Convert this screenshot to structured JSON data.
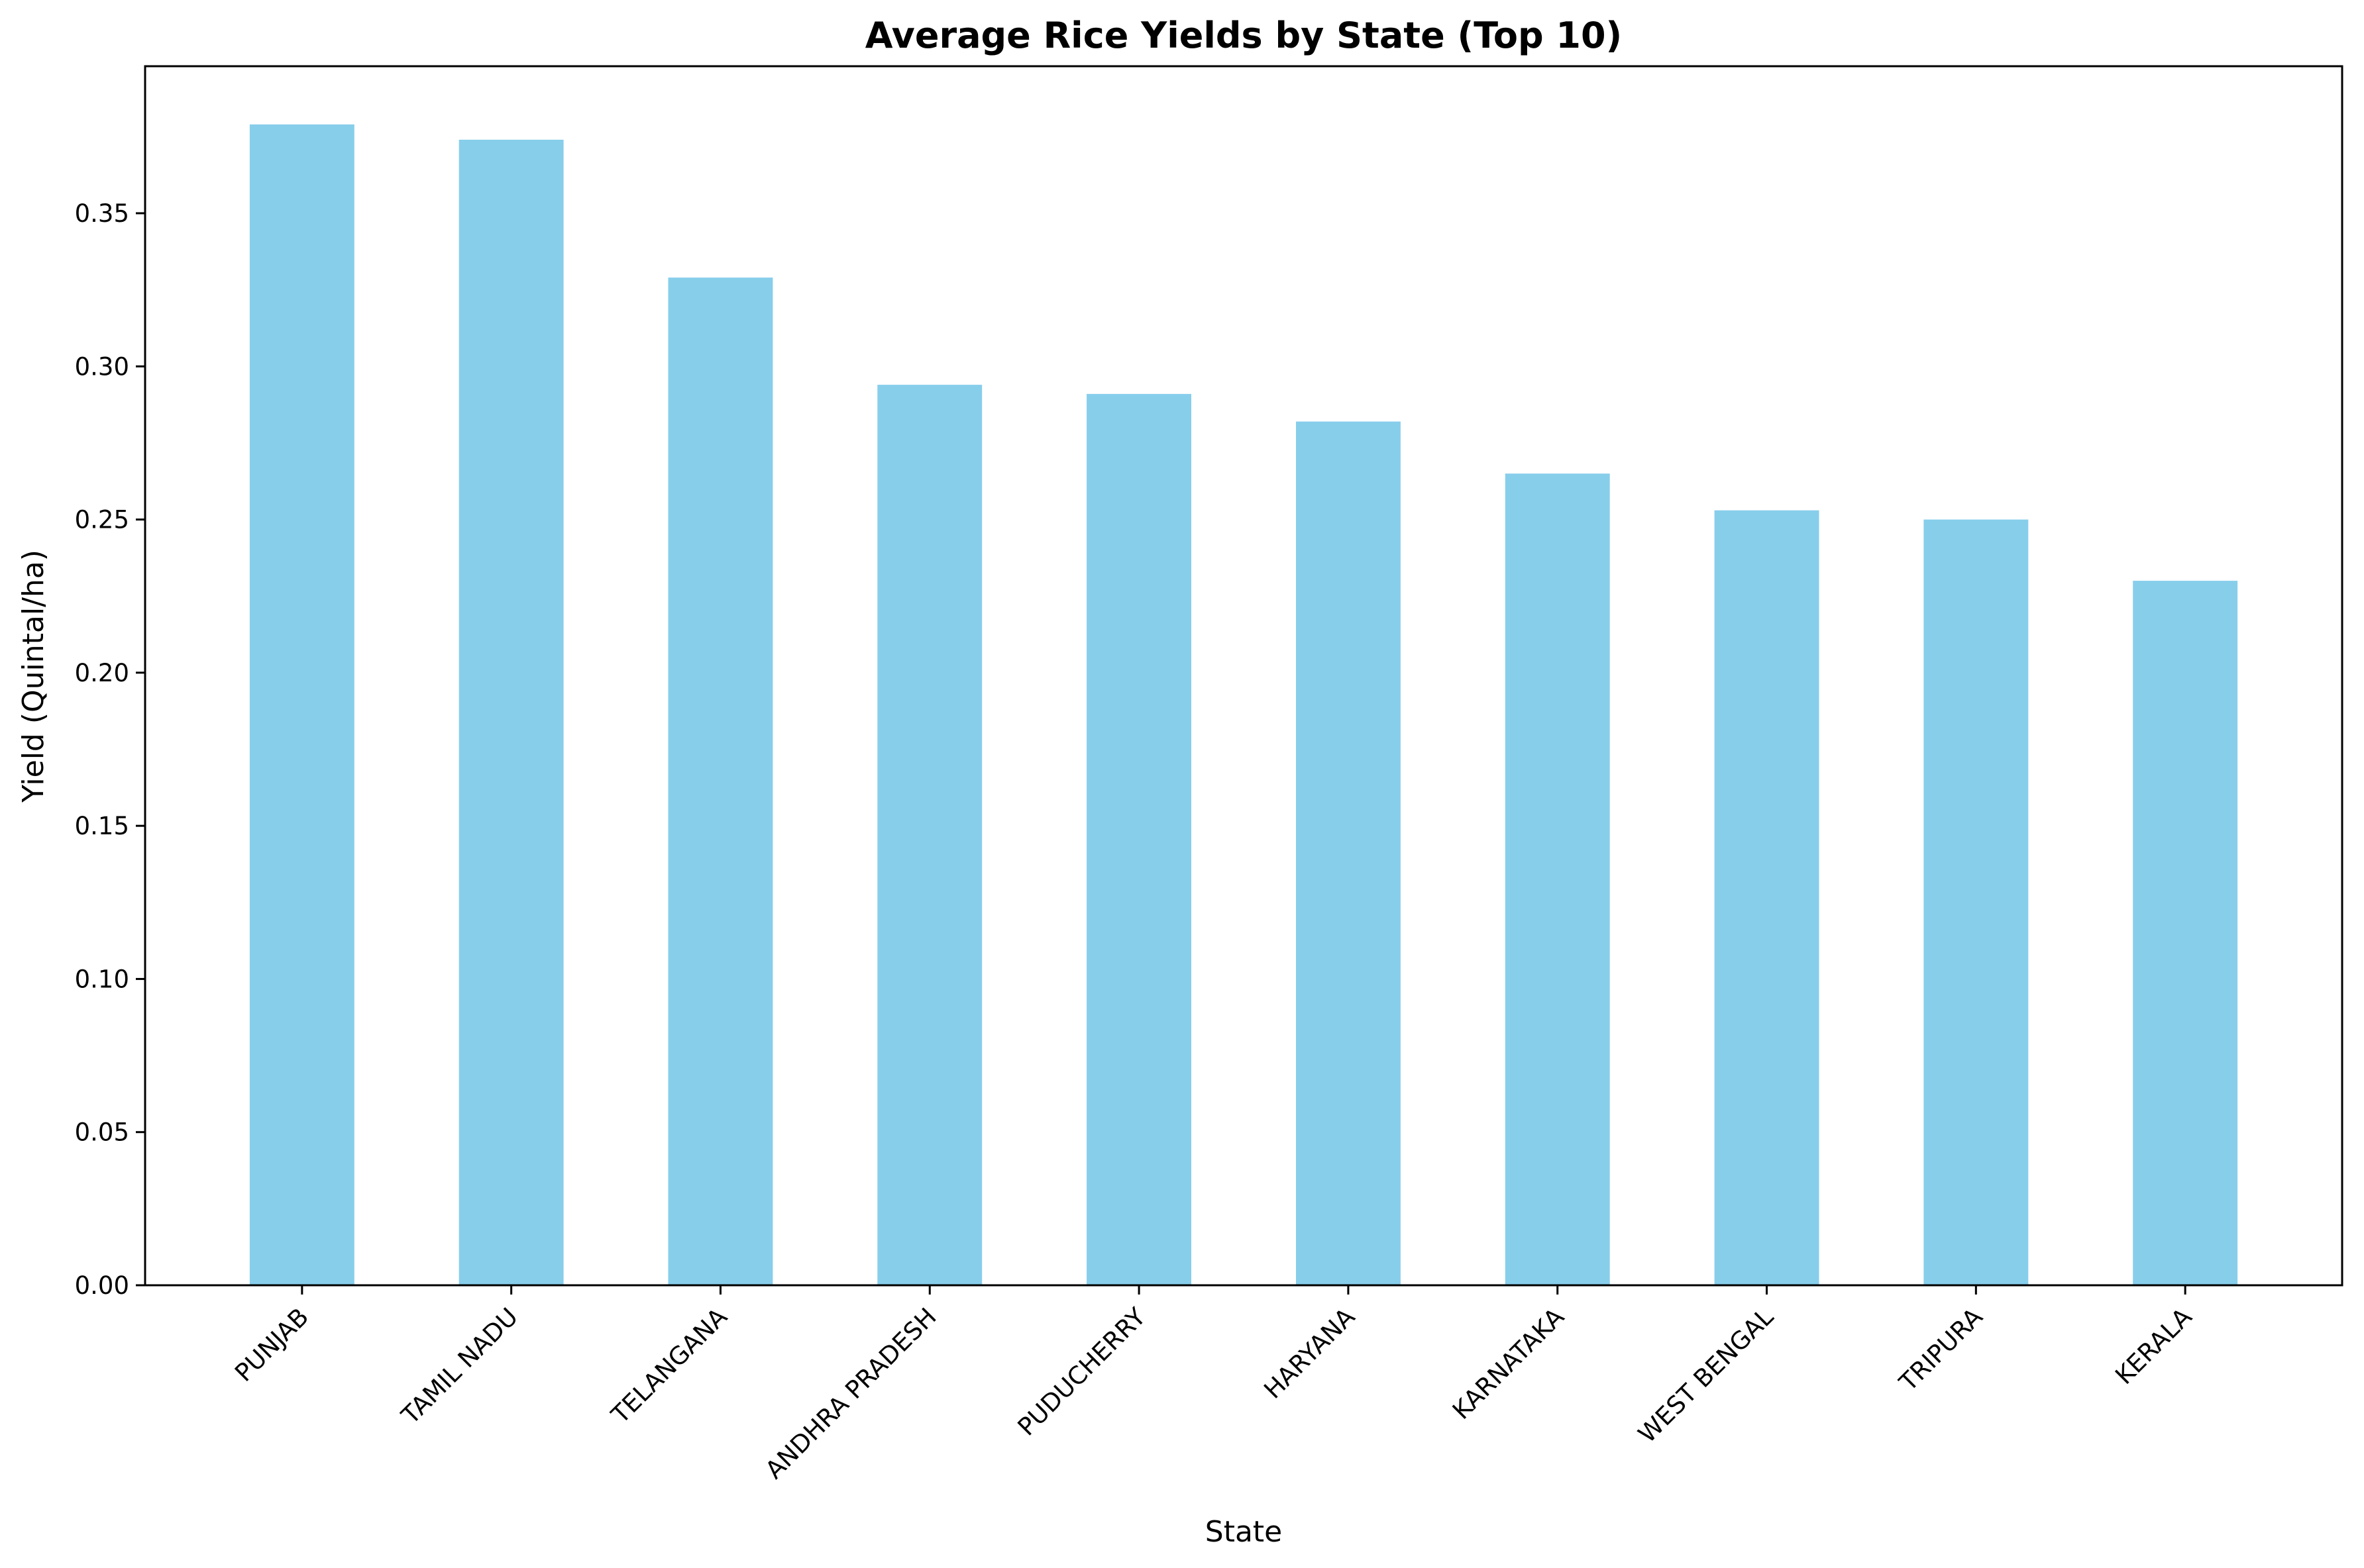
{
  "chart_data": {
    "type": "bar",
    "title": "Average Rice Yields by State (Top 10)",
    "xlabel": "State",
    "ylabel": "Yield (Quintal/ha)",
    "categories": [
      "PUNJAB",
      "TAMIL NADU",
      "TELANGANA",
      "ANDHRA PRADESH",
      "PUDUCHERRY",
      "HARYANA",
      "KARNATAKA",
      "WEST BENGAL",
      "TRIPURA",
      "KERALA"
    ],
    "values": [
      0.379,
      0.374,
      0.329,
      0.294,
      0.291,
      0.282,
      0.265,
      0.253,
      0.25,
      0.23
    ],
    "ylim": [
      0,
      0.398
    ],
    "yticks": [
      "0.00",
      "0.05",
      "0.10",
      "0.15",
      "0.20",
      "0.25",
      "0.30",
      "0.35"
    ],
    "grid": false,
    "legend": "none",
    "bar_color": "#87ceeb"
  }
}
